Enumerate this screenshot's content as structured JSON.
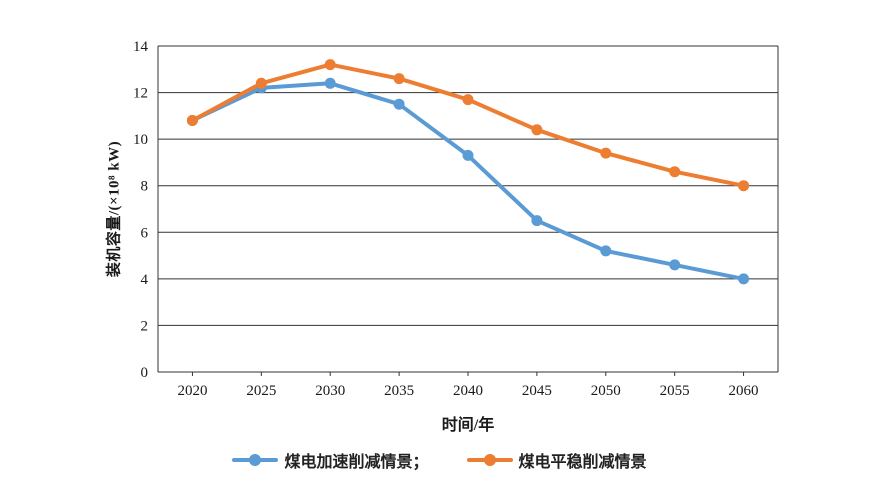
{
  "chart_data": {
    "type": "line",
    "categories": [
      "2020",
      "2025",
      "2030",
      "2035",
      "2040",
      "2045",
      "2050",
      "2055",
      "2060"
    ],
    "series": [
      {
        "name": "煤电加速削减情景",
        "color": "#5B9BD5",
        "values": [
          10.8,
          12.2,
          12.4,
          11.5,
          9.3,
          6.5,
          5.2,
          4.6,
          4.0
        ]
      },
      {
        "name": "煤电平稳削减情景",
        "color": "#ED7D31",
        "values": [
          10.8,
          12.4,
          13.2,
          12.6,
          11.7,
          10.4,
          9.4,
          8.6,
          8.0
        ]
      }
    ],
    "title": "",
    "xlabel": "时间/年",
    "ylabel": "装机容量/(×10⁸ kW)",
    "ylim": [
      0,
      14
    ],
    "ytick_step": 2,
    "grid": "horizontal",
    "legend_position": "bottom",
    "legend_labels": [
      "煤电加速削减情景；",
      "煤电平稳削减情景"
    ],
    "gridline_color": "#333333",
    "tick_label_color": "#1a1a1a"
  },
  "legend": {
    "item1": "煤电加速削减情景；",
    "item2": "煤电平稳削减情景"
  },
  "axes": {
    "x_label": "时间/年",
    "y_label": "装机容量/(×10⁸ kW)"
  }
}
